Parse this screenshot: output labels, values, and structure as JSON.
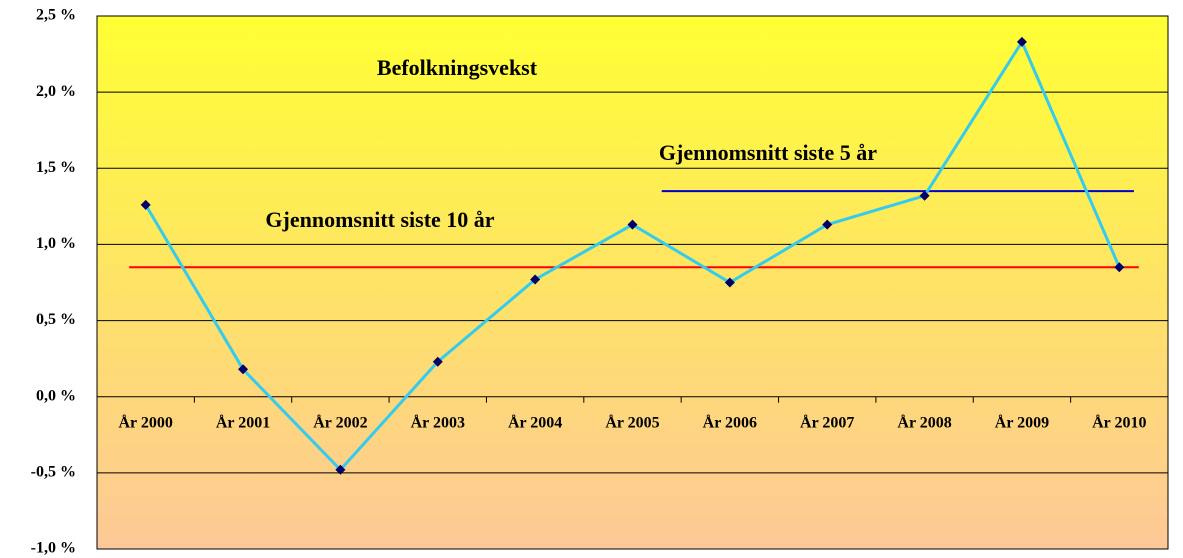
{
  "chart_data": {
    "type": "line",
    "title": "Befolkningsvekst",
    "categories": [
      "År 2000",
      "År 2001",
      "År 2002",
      "År 2003",
      "År 2004",
      "År 2005",
      "År 2006",
      "År 2007",
      "År 2008",
      "År 2009",
      "År 2010"
    ],
    "series": [
      {
        "color": "#33ccee",
        "marker_color": "#000066",
        "values": [
          1.26,
          0.18,
          -0.48,
          0.23,
          0.77,
          1.13,
          0.75,
          1.13,
          1.32,
          2.33,
          0.85
        ]
      }
    ],
    "reference_lines": [
      {
        "label": "Gjennomsnitt siste 10 år",
        "value": 0.85,
        "color": "#ff0000"
      },
      {
        "label": "Gjennomsnitt siste 5 år",
        "value": 1.35,
        "color": "#0000cc"
      }
    ],
    "ylim": [
      -1.0,
      2.5
    ],
    "yticks": [
      {
        "value": -1.0,
        "label": "-1,0 %"
      },
      {
        "value": -0.5,
        "label": "-0,5 %"
      },
      {
        "value": 0,
        "label": "0,0 %"
      },
      {
        "value": 0.5,
        "label": "0,5 %"
      },
      {
        "value": 1.0,
        "label": "1,0 %"
      },
      {
        "value": 1.5,
        "label": "1,5 %"
      },
      {
        "value": 2.0,
        "label": "2,0 %"
      },
      {
        "value": 2.5,
        "label": "2,5 %"
      }
    ],
    "grid": true
  }
}
